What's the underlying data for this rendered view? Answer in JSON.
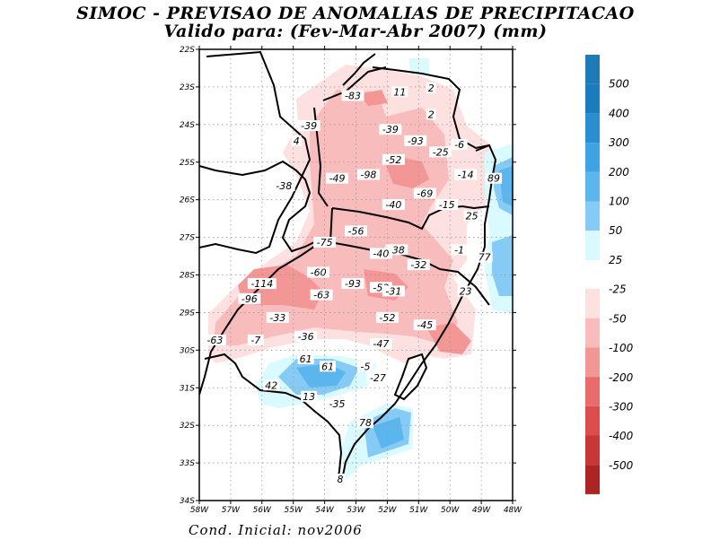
{
  "title": {
    "line1": "SIMOC - PREVISAO DE ANOMALIAS DE PRECIPITACAO",
    "line2": "Valido para: (Fev-Mar-Abr 2007) (mm)"
  },
  "footer": "Cond. Inicial: nov2006",
  "map": {
    "lat_labels": [
      "22S",
      "23S",
      "24S",
      "25S",
      "26S",
      "27S",
      "28S",
      "29S",
      "30S",
      "31S",
      "32S",
      "33S",
      "34S"
    ],
    "lon_labels": [
      "58W",
      "57W",
      "56W",
      "55W",
      "54W",
      "53W",
      "52W",
      "51W",
      "50W",
      "49W",
      "48W"
    ],
    "values": [
      {
        "text": "-83",
        "lon": -53.1,
        "lat": -23.3
      },
      {
        "text": "11",
        "lon": -51.6,
        "lat": -23.2
      },
      {
        "text": "2",
        "lon": -50.6,
        "lat": -23.1
      },
      {
        "text": "2",
        "lon": -50.6,
        "lat": -23.8
      },
      {
        "text": "-39",
        "lon": -54.5,
        "lat": -24.1
      },
      {
        "text": "-39",
        "lon": -51.9,
        "lat": -24.2
      },
      {
        "text": "4",
        "lon": -54.9,
        "lat": -24.5
      },
      {
        "text": "-93",
        "lon": -51.1,
        "lat": -24.5
      },
      {
        "text": "-6",
        "lon": -49.7,
        "lat": -24.6
      },
      {
        "text": "-25",
        "lon": -50.3,
        "lat": -24.8
      },
      {
        "text": "-52",
        "lon": -51.8,
        "lat": -25.0
      },
      {
        "text": "-38",
        "lon": -55.3,
        "lat": -25.7
      },
      {
        "text": "-49",
        "lon": -53.6,
        "lat": -25.5
      },
      {
        "text": "-98",
        "lon": -52.6,
        "lat": -25.4
      },
      {
        "text": "-14",
        "lon": -49.5,
        "lat": -25.4
      },
      {
        "text": "89",
        "lon": -48.6,
        "lat": -25.5
      },
      {
        "text": "-69",
        "lon": -50.8,
        "lat": -25.9
      },
      {
        "text": "-40",
        "lon": -51.8,
        "lat": -26.2
      },
      {
        "text": "-15",
        "lon": -50.1,
        "lat": -26.2
      },
      {
        "text": "25",
        "lon": -49.3,
        "lat": -26.5
      },
      {
        "text": "-56",
        "lon": -53.0,
        "lat": -26.9
      },
      {
        "text": "-75",
        "lon": -54.0,
        "lat": -27.2
      },
      {
        "text": "-38",
        "lon": -51.7,
        "lat": -27.4
      },
      {
        "text": "-40",
        "lon": -52.2,
        "lat": -27.5
      },
      {
        "text": "-1",
        "lon": -49.7,
        "lat": -27.4
      },
      {
        "text": "77",
        "lon": -48.9,
        "lat": -27.6
      },
      {
        "text": "-32",
        "lon": -51.0,
        "lat": -27.8
      },
      {
        "text": "-60",
        "lon": -54.2,
        "lat": -28.0
      },
      {
        "text": "-114",
        "lon": -56.0,
        "lat": -28.3
      },
      {
        "text": "-93",
        "lon": -53.1,
        "lat": -28.3
      },
      {
        "text": "-53",
        "lon": -52.2,
        "lat": -28.4
      },
      {
        "text": "-63",
        "lon": -54.1,
        "lat": -28.6
      },
      {
        "text": "-31",
        "lon": -51.8,
        "lat": -28.5
      },
      {
        "text": "23",
        "lon": -49.5,
        "lat": -28.5
      },
      {
        "text": "-96",
        "lon": -56.4,
        "lat": -28.7
      },
      {
        "text": "-33",
        "lon": -55.5,
        "lat": -29.2
      },
      {
        "text": "-52",
        "lon": -52.0,
        "lat": -29.2
      },
      {
        "text": "-45",
        "lon": -50.8,
        "lat": -29.4
      },
      {
        "text": "-36",
        "lon": -54.6,
        "lat": -29.7
      },
      {
        "text": "-63",
        "lon": -57.5,
        "lat": -29.8
      },
      {
        "text": "-7",
        "lon": -56.2,
        "lat": -29.8
      },
      {
        "text": "-47",
        "lon": -52.2,
        "lat": -29.9
      },
      {
        "text": "61",
        "lon": -54.6,
        "lat": -30.3
      },
      {
        "text": "61",
        "lon": -53.9,
        "lat": -30.5
      },
      {
        "text": "-5",
        "lon": -52.7,
        "lat": -30.5
      },
      {
        "text": "-27",
        "lon": -52.3,
        "lat": -30.8
      },
      {
        "text": "42",
        "lon": -55.7,
        "lat": -31.0
      },
      {
        "text": "13",
        "lon": -54.5,
        "lat": -31.3
      },
      {
        "text": "-35",
        "lon": -53.6,
        "lat": -31.5
      },
      {
        "text": "78",
        "lon": -52.7,
        "lat": -32.0
      },
      {
        "text": "8",
        "lon": -53.5,
        "lat": -33.5
      }
    ]
  },
  "legend": {
    "positive": [
      {
        "label": "500",
        "color": "#1a7bbd"
      },
      {
        "label": "400",
        "color": "#2a8fd0"
      },
      {
        "label": "300",
        "color": "#3da3e2"
      },
      {
        "label": "200",
        "color": "#5bb6ee"
      },
      {
        "label": "100",
        "color": "#86cbf5"
      },
      {
        "label": "50",
        "color": "#b3e4fb"
      },
      {
        "label": "25",
        "color": "#d9fbff"
      }
    ],
    "negative": [
      {
        "label": "-25",
        "color": "#fde0e0"
      },
      {
        "label": "-50",
        "color": "#f8bcbc"
      },
      {
        "label": "-100",
        "color": "#f29696"
      },
      {
        "label": "-200",
        "color": "#ea6b6b"
      },
      {
        "label": "-300",
        "color": "#dc4d4d"
      },
      {
        "label": "-400",
        "color": "#c83636"
      },
      {
        "label": "-500",
        "color": "#ac2424"
      }
    ],
    "top_color": "#1f7ab8",
    "bottom_color": "#a52020"
  }
}
